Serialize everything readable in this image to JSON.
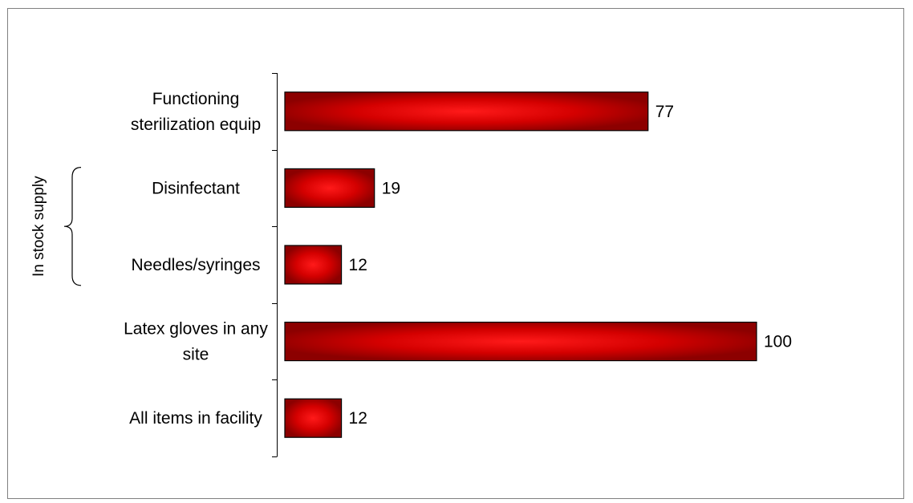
{
  "chart_data": {
    "type": "bar",
    "orientation": "horizontal",
    "categories": [
      [
        "Functioning",
        "sterilization equip"
      ],
      [
        "Disinfectant"
      ],
      [
        "Needles/syringes"
      ],
      [
        "Latex gloves in any",
        "site"
      ],
      [
        "All items in facility"
      ]
    ],
    "values": [
      77,
      19,
      12,
      100,
      12
    ],
    "xlim": [
      0,
      100
    ],
    "grid": false,
    "bar_color": "#cc0000",
    "group_label": {
      "text": "In stock supply",
      "categories": [
        1,
        2
      ]
    }
  }
}
